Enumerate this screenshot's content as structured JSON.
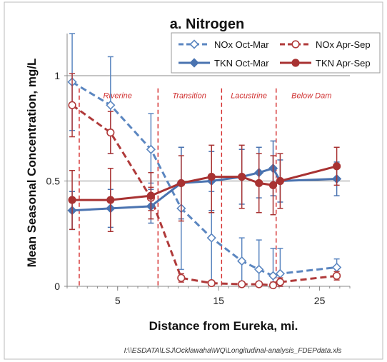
{
  "chart_data": {
    "type": "line",
    "title": "a. Nitrogen",
    "xlabel": "Distance from Eureka, mi.",
    "ylabel": "Mean Seasonal Concentration, mg/L",
    "xlim": [
      0,
      28
    ],
    "ylim": [
      0,
      1.2
    ],
    "x_ticks": [
      5,
      15,
      25
    ],
    "y_ticks": [
      0,
      0.5,
      1
    ],
    "y_tick_labels": [
      "0",
      "0.5",
      "1"
    ],
    "grid": "horizontal",
    "legend_position": "top-right",
    "zone_boundaries": [
      1.2,
      9,
      15.3,
      20.7
    ],
    "zones": [
      {
        "label": "Riverine",
        "x": 5
      },
      {
        "label": "Transition",
        "x": 12.1
      },
      {
        "label": "Lacustrine",
        "x": 18
      },
      {
        "label": "Below Dam",
        "x": 24.2
      }
    ],
    "series": [
      {
        "name": "NOx Oct-Mar",
        "color": "#5b86c0",
        "line": "dashed",
        "marker": "diamond-open",
        "points": [
          {
            "x": 0.5,
            "y": 0.97,
            "lo": 0.74,
            "hi": 1.2
          },
          {
            "x": 4.3,
            "y": 0.86,
            "lo": 0.63,
            "hi": 1.09
          },
          {
            "x": 8.3,
            "y": 0.65,
            "lo": 0.49,
            "hi": 0.82
          },
          {
            "x": 11.3,
            "y": 0.37,
            "lo": 0.08,
            "hi": 0.66
          },
          {
            "x": 14.3,
            "y": 0.23,
            "lo": 0.01,
            "hi": 0.45
          },
          {
            "x": 17.3,
            "y": 0.12,
            "lo": 0.0,
            "hi": 0.23
          },
          {
            "x": 19.0,
            "y": 0.08,
            "lo": 0.0,
            "hi": 0.22
          },
          {
            "x": 20.4,
            "y": 0.05,
            "lo": 0.0,
            "hi": 0.18
          },
          {
            "x": 21.1,
            "y": 0.06,
            "lo": 0.0,
            "hi": 0.18
          },
          {
            "x": 26.7,
            "y": 0.09,
            "lo": 0.05,
            "hi": 0.13
          }
        ]
      },
      {
        "name": "NOx Apr-Sep",
        "color": "#b03a3a",
        "line": "dashed",
        "marker": "circle-open",
        "points": [
          {
            "x": 0.5,
            "y": 0.86,
            "lo": 0.71,
            "hi": 1.01
          },
          {
            "x": 4.3,
            "y": 0.73,
            "lo": 0.63,
            "hi": 0.83
          },
          {
            "x": 8.3,
            "y": 0.42,
            "lo": 0.36,
            "hi": 0.47
          },
          {
            "x": 11.3,
            "y": 0.04,
            "lo": 0.02,
            "hi": 0.06
          },
          {
            "x": 14.3,
            "y": 0.015,
            "lo": 0.005,
            "hi": 0.025
          },
          {
            "x": 17.3,
            "y": 0.01,
            "lo": 0.0,
            "hi": 0.02
          },
          {
            "x": 19.0,
            "y": 0.01,
            "lo": 0.0,
            "hi": 0.02
          },
          {
            "x": 20.4,
            "y": 0.005,
            "lo": 0.0,
            "hi": 0.02
          },
          {
            "x": 21.1,
            "y": 0.02,
            "lo": 0.0,
            "hi": 0.04
          },
          {
            "x": 26.7,
            "y": 0.05,
            "lo": 0.03,
            "hi": 0.07
          }
        ]
      },
      {
        "name": "TKN Oct-Mar",
        "color": "#4a73b0",
        "line": "solid",
        "marker": "diamond",
        "points": [
          {
            "x": 0.5,
            "y": 0.36,
            "lo": 0.27,
            "hi": 0.45
          },
          {
            "x": 4.3,
            "y": 0.37,
            "lo": 0.28,
            "hi": 0.46
          },
          {
            "x": 8.3,
            "y": 0.38,
            "lo": 0.3,
            "hi": 0.46
          },
          {
            "x": 11.3,
            "y": 0.49,
            "lo": 0.32,
            "hi": 0.66
          },
          {
            "x": 14.3,
            "y": 0.5,
            "lo": 0.36,
            "hi": 0.64
          },
          {
            "x": 17.3,
            "y": 0.52,
            "lo": 0.39,
            "hi": 0.65
          },
          {
            "x": 19.0,
            "y": 0.54,
            "lo": 0.42,
            "hi": 0.66
          },
          {
            "x": 20.4,
            "y": 0.56,
            "lo": 0.43,
            "hi": 0.69
          },
          {
            "x": 21.1,
            "y": 0.5,
            "lo": 0.4,
            "hi": 0.6
          },
          {
            "x": 26.7,
            "y": 0.51,
            "lo": 0.43,
            "hi": 0.59
          }
        ]
      },
      {
        "name": "TKN Apr-Sep",
        "color": "#a83232",
        "line": "solid",
        "marker": "circle",
        "points": [
          {
            "x": 0.5,
            "y": 0.41,
            "lo": 0.27,
            "hi": 0.55
          },
          {
            "x": 4.3,
            "y": 0.41,
            "lo": 0.26,
            "hi": 0.56
          },
          {
            "x": 8.3,
            "y": 0.43,
            "lo": 0.32,
            "hi": 0.54
          },
          {
            "x": 11.3,
            "y": 0.49,
            "lo": 0.31,
            "hi": 0.62
          },
          {
            "x": 14.3,
            "y": 0.52,
            "lo": 0.35,
            "hi": 0.67
          },
          {
            "x": 17.3,
            "y": 0.52,
            "lo": 0.37,
            "hi": 0.67
          },
          {
            "x": 19.0,
            "y": 0.49,
            "lo": 0.35,
            "hi": 0.63
          },
          {
            "x": 20.4,
            "y": 0.48,
            "lo": 0.34,
            "hi": 0.62
          },
          {
            "x": 21.1,
            "y": 0.5,
            "lo": 0.37,
            "hi": 0.63
          },
          {
            "x": 26.7,
            "y": 0.57,
            "lo": 0.48,
            "hi": 0.66
          }
        ]
      }
    ]
  },
  "footer": {
    "path": "I:\\\\ESDATA\\LSJ\\Ocklawaha\\WQ\\Longitudinal-analysis_FDEPdata.xls"
  }
}
